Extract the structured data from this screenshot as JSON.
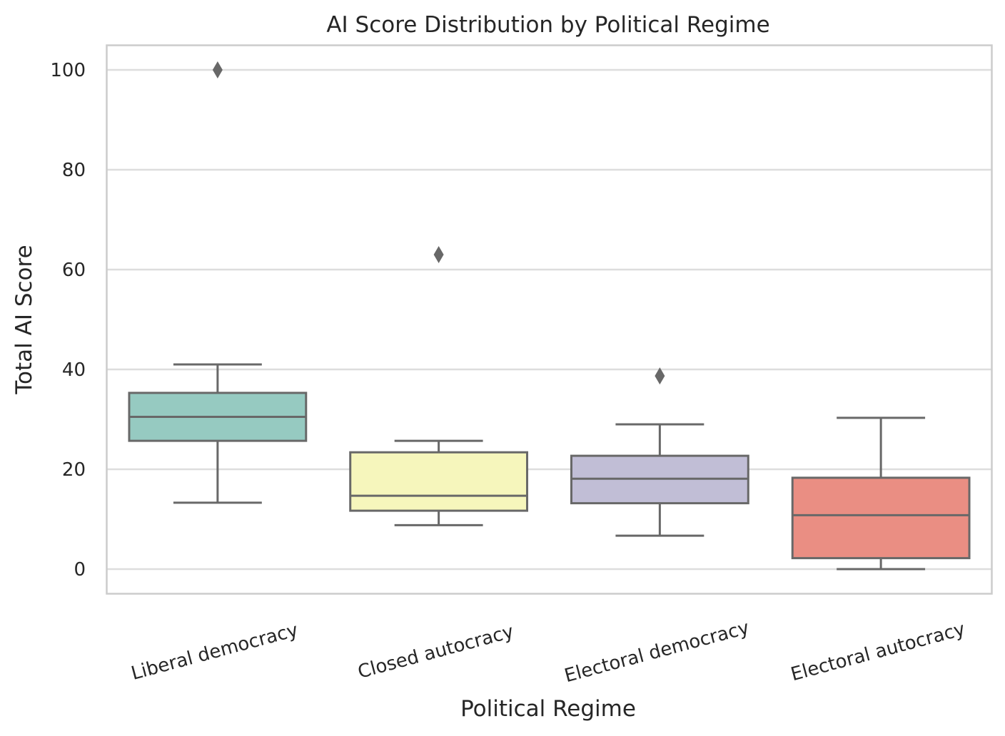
{
  "chart_data": {
    "type": "box",
    "title": "AI Score Distribution by Political Regime",
    "xlabel": "Political Regime",
    "ylabel": "Total AI Score",
    "ylim": [
      -5,
      105
    ],
    "yticks": [
      0,
      20,
      40,
      60,
      80,
      100
    ],
    "grid": true,
    "categories": [
      "Liberal democracy",
      "Closed autocracy",
      "Electoral democracy",
      "Electoral autocracy"
    ],
    "boxes": [
      {
        "category": "Liberal democracy",
        "whisker_low": 13.3,
        "q1": 25.7,
        "median": 30.5,
        "q3": 35.3,
        "whisker_high": 41.0,
        "outliers": [
          100.0
        ],
        "color": "#96cac1"
      },
      {
        "category": "Closed autocracy",
        "whisker_low": 8.8,
        "q1": 11.7,
        "median": 14.7,
        "q3": 23.4,
        "whisker_high": 25.7,
        "outliers": [
          63.0
        ],
        "color": "#f6f6bc"
      },
      {
        "category": "Electoral democracy",
        "whisker_low": 6.7,
        "q1": 13.2,
        "median": 18.1,
        "q3": 22.7,
        "whisker_high": 29.0,
        "outliers": [
          38.7
        ],
        "color": "#c1bed6"
      },
      {
        "category": "Electoral autocracy",
        "whisker_low": 0.0,
        "q1": 2.2,
        "median": 10.8,
        "q3": 18.3,
        "whisker_high": 30.3,
        "outliers": [],
        "color": "#ea8e83"
      }
    ],
    "line_color": "#686868",
    "grid_color": "#dddddd",
    "frame_color": "#cccccc"
  }
}
